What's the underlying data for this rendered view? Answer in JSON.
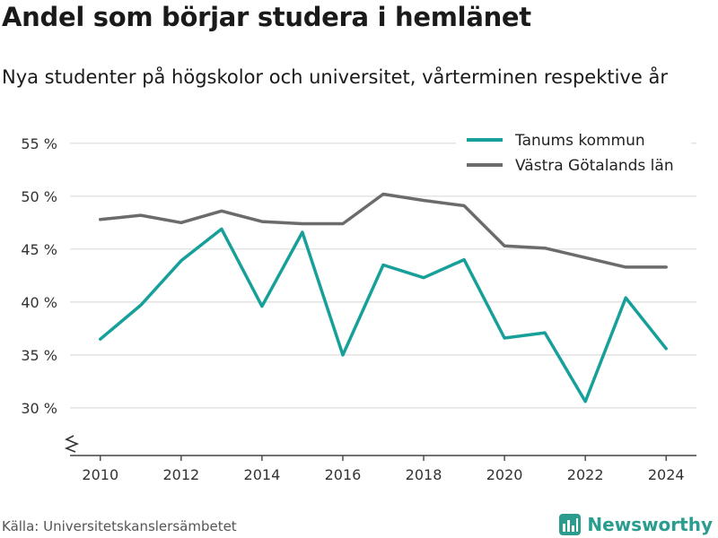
{
  "header": {
    "title": "Andel som börjar studera i hemlänet",
    "subtitle": "Nya studenter på högskolor och universitet, vårterminen respektive år"
  },
  "footer": {
    "source": "Källa: Universitetskanslersämbetet",
    "brand": "Newsworthy",
    "brand_icon": "newsworthy-logo-icon"
  },
  "chart_data": {
    "type": "line",
    "x": [
      2010,
      2011,
      2012,
      2013,
      2014,
      2015,
      2016,
      2017,
      2018,
      2019,
      2020,
      2021,
      2022,
      2023,
      2024
    ],
    "series": [
      {
        "name": "Tanums kommun",
        "color": "#17a09a",
        "values": [
          36.5,
          39.7,
          43.9,
          46.9,
          39.6,
          46.6,
          35.0,
          43.5,
          42.3,
          44.0,
          36.6,
          37.1,
          30.6,
          40.4,
          35.6
        ]
      },
      {
        "name": "Västra Götalands län",
        "color": "#6b6b6b",
        "values": [
          47.8,
          48.2,
          47.5,
          48.6,
          47.6,
          47.4,
          47.4,
          50.2,
          49.6,
          49.1,
          45.3,
          45.1,
          44.2,
          43.3,
          43.3
        ]
      }
    ],
    "xticks": [
      "2010",
      "2012",
      "2014",
      "2016",
      "2018",
      "2020",
      "2022",
      "2024"
    ],
    "yticks": [
      "30 %",
      "35 %",
      "40 %",
      "45 %",
      "50 %",
      "55 %"
    ],
    "ytick_values": [
      30,
      35,
      40,
      45,
      50,
      55
    ],
    "ylim": [
      25.5,
      56.0
    ],
    "xlim": [
      2009.25,
      2024.75
    ],
    "grid": true,
    "axis_break": true,
    "legend_position": "top-right"
  }
}
